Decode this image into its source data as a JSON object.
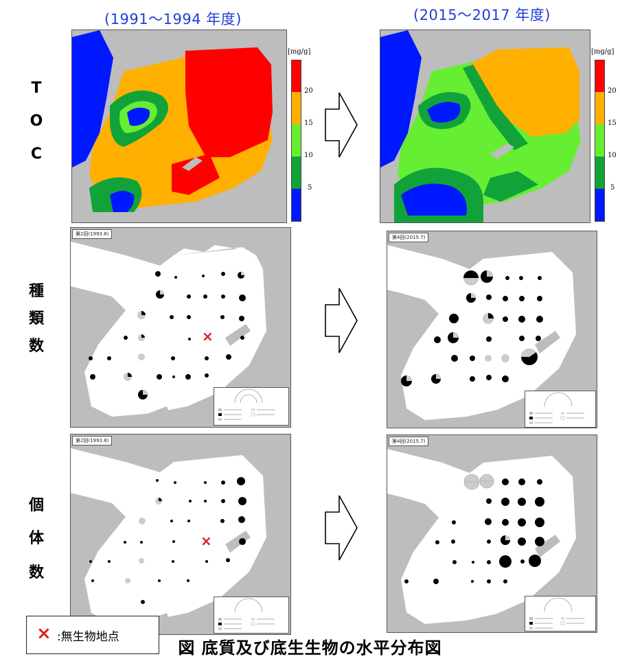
{
  "periods": {
    "left": "(1991〜1994 年度)",
    "right": "(2015〜2017 年度)"
  },
  "row_labels": {
    "toc": [
      "T",
      "O",
      "C"
    ],
    "species": [
      "種",
      "類",
      "数"
    ],
    "individuals": [
      "個",
      "体",
      "数"
    ]
  },
  "colorbar": {
    "unit": "[mg/g]",
    "ticks": [
      "20",
      "15",
      "10",
      "5"
    ],
    "colors": [
      "#ff0000",
      "#ffb000",
      "#66ee33",
      "#11a33a",
      "#0018ff"
    ]
  },
  "survey_tags": {
    "first": "第2回(1993.8)",
    "second": "第4回(2015.7)"
  },
  "map_colors": {
    "land": "#bdbdbd",
    "sea": "#ffffff"
  },
  "note": {
    "mark": "×",
    "text": ":無生物地点"
  },
  "caption": "図 底質及び底生生物の水平分布図"
}
